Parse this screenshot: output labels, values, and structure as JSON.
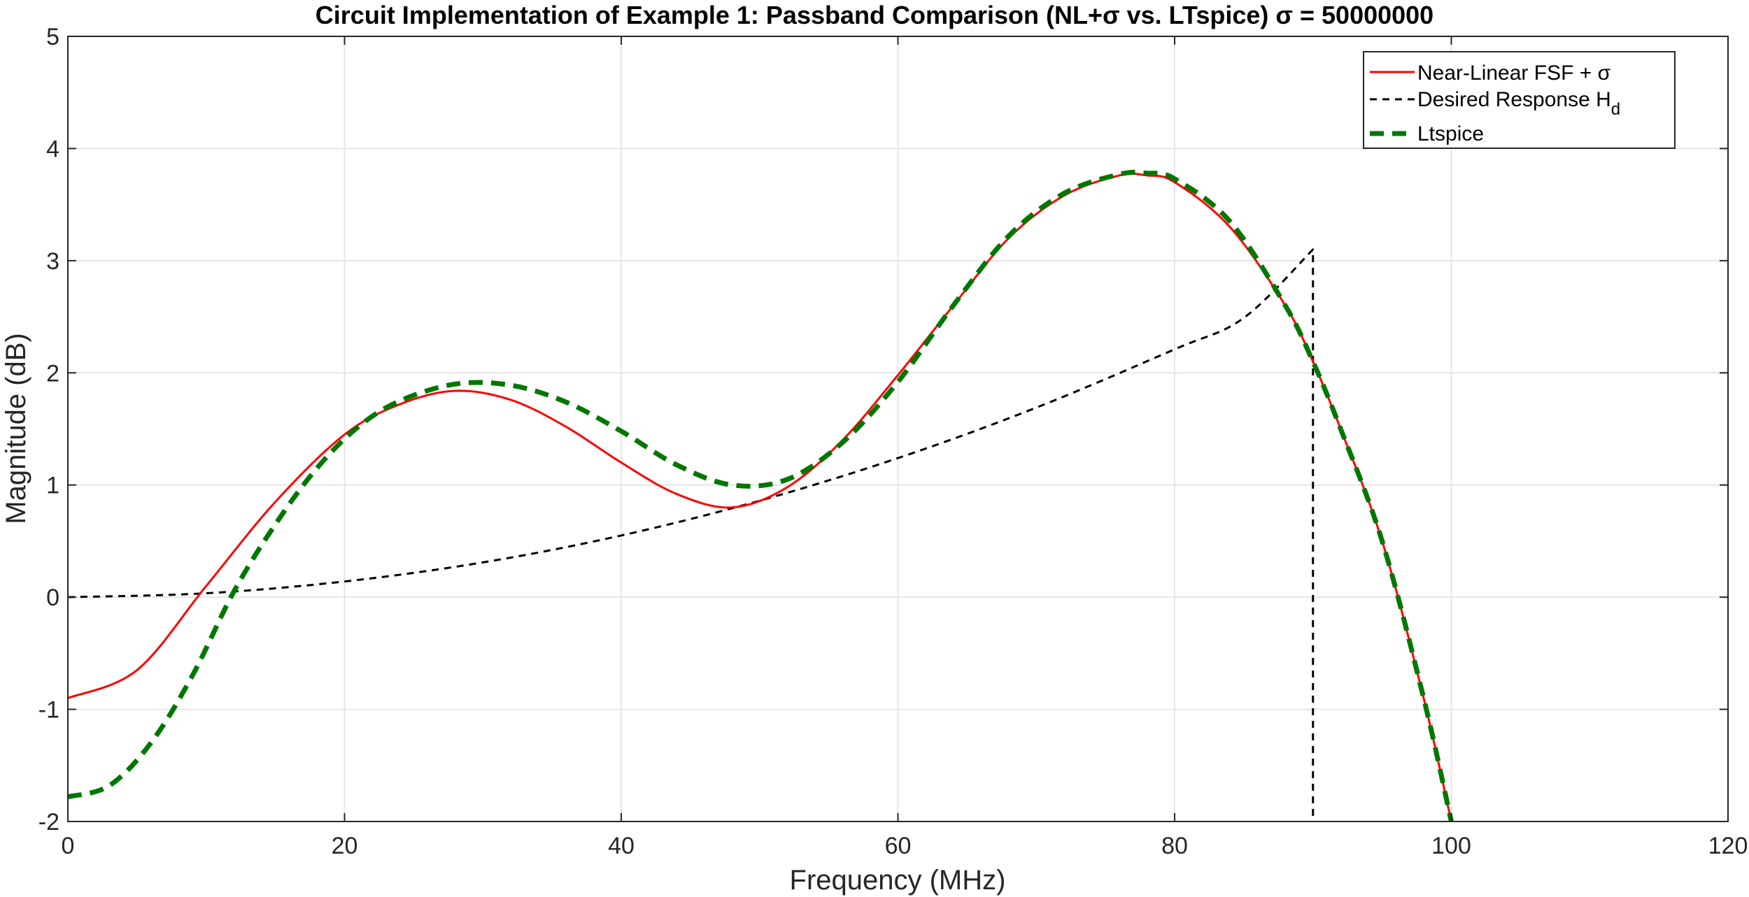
{
  "chart_data": {
    "type": "line",
    "title": "Circuit Implementation of Example 1: Passband Comparison (NL+σ vs. LTspice) σ = 50000000",
    "xlabel": "Frequency (MHz)",
    "ylabel": "Magnitude (dB)",
    "xlim": [
      0,
      120
    ],
    "ylim": [
      -2,
      5
    ],
    "xticks": [
      0,
      20,
      40,
      60,
      80,
      100,
      120
    ],
    "yticks": [
      -2,
      -1,
      0,
      1,
      2,
      3,
      4,
      5
    ],
    "xtick_labels": [
      "0",
      "20",
      "40",
      "60",
      "80",
      "100",
      "120"
    ],
    "ytick_labels": [
      "-2",
      "-1",
      "0",
      "1",
      "2",
      "3",
      "4",
      "5"
    ],
    "grid": true,
    "legend_position": "top-right",
    "legend": {
      "nl_label": "Near-Linear FSF + σ",
      "hd_label_main": "Desired Response H",
      "hd_label_sub": "d",
      "lt_label": "Ltspice"
    },
    "series": [
      {
        "name": "Near-Linear FSF + σ",
        "color": "#ff0000",
        "style": "solid",
        "x": [
          0,
          5,
          10,
          15,
          20,
          24,
          28,
          32,
          36,
          40,
          44,
          48,
          52,
          56,
          60,
          64,
          68,
          72,
          76,
          78,
          80,
          84,
          88,
          90,
          92,
          95,
          98,
          100
        ],
        "y": [
          -0.9,
          -0.65,
          0.1,
          0.85,
          1.45,
          1.72,
          1.84,
          1.76,
          1.52,
          1.2,
          0.92,
          0.8,
          0.98,
          1.4,
          1.98,
          2.6,
          3.2,
          3.58,
          3.76,
          3.76,
          3.7,
          3.3,
          2.6,
          2.1,
          1.5,
          0.5,
          -0.9,
          -2.0
        ]
      },
      {
        "name": "Desired Response Hd",
        "color": "#000000",
        "style": "dashed",
        "x": [
          0,
          10,
          20,
          30,
          40,
          50,
          60,
          70,
          80,
          85,
          90,
          90
        ],
        "y": [
          0,
          0.035,
          0.14,
          0.31,
          0.55,
          0.86,
          1.24,
          1.69,
          2.21,
          2.49,
          3.1,
          -2.0
        ]
      },
      {
        "name": "Ltspice",
        "color": "#007700",
        "style": "dashed",
        "x": [
          0,
          3,
          6,
          9,
          12,
          15,
          18,
          21,
          24,
          28,
          32,
          36,
          40,
          44,
          48,
          52,
          56,
          60,
          64,
          68,
          72,
          76,
          78,
          80,
          84,
          88,
          90,
          92,
          95,
          98,
          100
        ],
        "y": [
          -1.78,
          -1.68,
          -1.3,
          -0.7,
          0.05,
          0.65,
          1.15,
          1.52,
          1.75,
          1.9,
          1.89,
          1.74,
          1.48,
          1.18,
          1.0,
          1.05,
          1.38,
          1.92,
          2.6,
          3.22,
          3.6,
          3.77,
          3.78,
          3.73,
          3.35,
          2.6,
          2.1,
          1.5,
          0.5,
          -0.9,
          -2.0
        ]
      }
    ]
  }
}
